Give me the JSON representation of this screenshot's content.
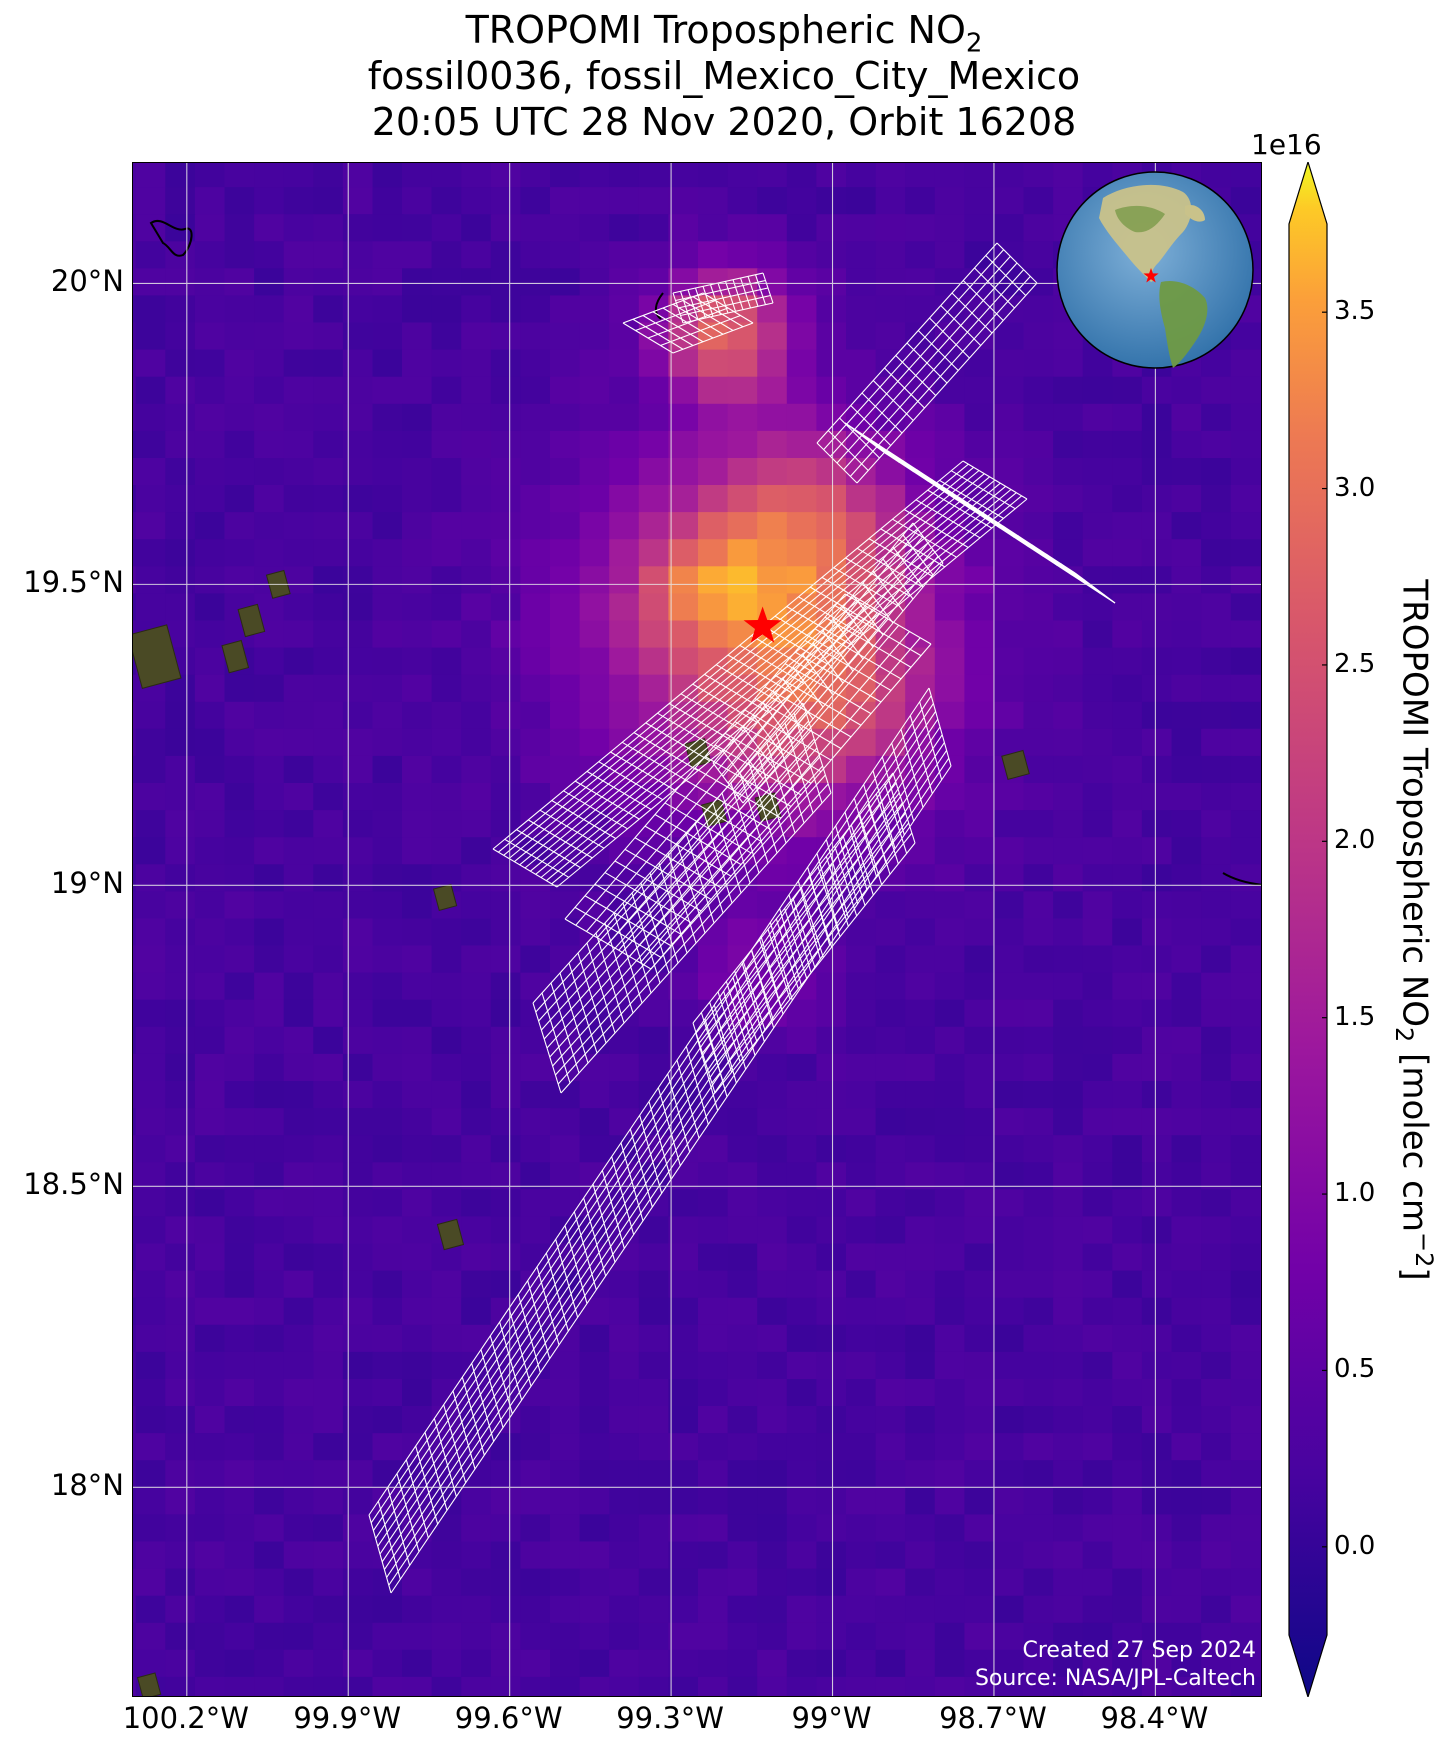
{
  "title": {
    "line1": "TROPOMI Tropospheric NO",
    "line1_sub": "2",
    "line2": "fossil0036, fossil_Mexico_City_Mexico",
    "line3": "20:05 UTC 28 Nov 2020, Orbit 16208"
  },
  "map": {
    "lat_labels": [
      "20°N",
      "19.5°N",
      "19°N",
      "18.5°N",
      "18°N"
    ],
    "lon_labels": [
      "100.2°W",
      "99.9°W",
      "99.6°W",
      "99.3°W",
      "99°W",
      "98.7°W",
      "98.4°W"
    ],
    "extent": {
      "lon_min": -100.3,
      "lon_max": -98.2,
      "lat_min": 17.65,
      "lat_max": 20.2
    },
    "target": {
      "lon": -99.13,
      "lat": 19.43,
      "marker": "red-star"
    },
    "credit_line1": "Created 27 Sep 2024",
    "credit_line2": "Source: NASA/JPL-Caltech"
  },
  "colorbar": {
    "scale": "1e16",
    "ticks": [
      "0.0",
      "0.5",
      "1.0",
      "1.5",
      "2.0",
      "2.5",
      "3.0",
      "3.5"
    ],
    "tick_values": [
      0.0,
      0.5,
      1.0,
      1.5,
      2.0,
      2.5,
      3.0,
      3.5
    ],
    "range": [
      -0.25,
      3.75
    ],
    "label_main": "TROPOMI Tropospheric NO",
    "label_sub": "2",
    "label_units": " [molec cm",
    "label_sup": "−2",
    "label_end": "]",
    "colormap": "plasma"
  },
  "colors": {
    "background": "#3a0ca3",
    "grid": "#ffffff",
    "star": "#ff0000"
  }
}
